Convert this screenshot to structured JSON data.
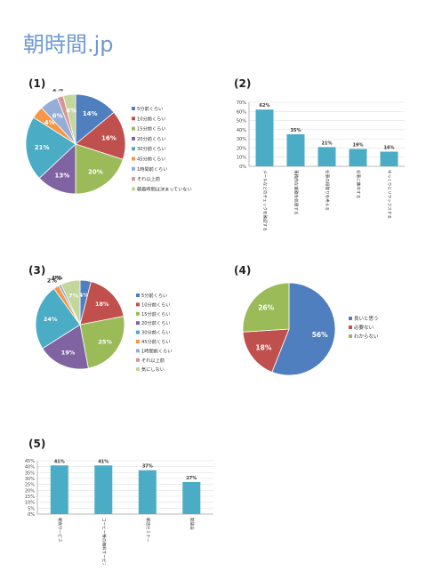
{
  "header": {
    "logo": "朝時間.jp"
  },
  "panels": [
    "(1)",
    "(2)",
    "(3)",
    "(4)",
    "(5)"
  ],
  "chart_data": [
    {
      "type": "pie",
      "labels": [
        "5分前くらい",
        "10分前くらい",
        "15分前くらい",
        "20分前くらい",
        "30分前くらい",
        "45分前くらい",
        "1時間前くらい",
        "それ以上前",
        "朝着時間は決まっていない"
      ],
      "values": [
        14,
        16,
        20,
        13,
        21,
        4,
        6,
        2,
        4
      ],
      "value_labels": [
        "14%",
        "16%",
        "20%",
        "13%",
        "21%",
        "4%",
        "6%",
        "2%",
        "4%"
      ],
      "colors": [
        "#4f7fbe",
        "#c0504d",
        "#9bbb59",
        "#8064a2",
        "#4bacc6",
        "#f79646",
        "#94aed8",
        "#d99694",
        "#c3d69b"
      ],
      "legend": "right"
    },
    {
      "type": "bar",
      "categories": [
        "メールなどのチェックを確認する",
        "事務的な業務を処理する",
        "仕事の段取りを考える",
        "仕事に集中する",
        "ゆっくりとリラックスする"
      ],
      "values": [
        62,
        35,
        21,
        19,
        16
      ],
      "value_labels": [
        "62%",
        "35%",
        "21%",
        "19%",
        "16%"
      ],
      "yticks": [
        "0%",
        "10%",
        "20%",
        "30%",
        "40%",
        "50%",
        "60%",
        "70%"
      ],
      "ylim": [
        0,
        70
      ],
      "color": "#4bacc6",
      "grid": true
    },
    {
      "type": "pie",
      "labels": [
        "5分前くらい",
        "10分前くらい",
        "15分前くらい",
        "20分前くらい",
        "30分前くらい",
        "45分前くらい",
        "1時間前くらい",
        "それ以上前",
        "気にしない"
      ],
      "values": [
        4,
        18,
        25,
        19,
        24,
        2,
        1,
        0,
        7
      ],
      "value_labels": [
        "4%",
        "18%",
        "25%",
        "19%",
        "24%",
        "2%",
        "1%",
        "0%",
        "7%"
      ],
      "colors": [
        "#4f7fbe",
        "#c0504d",
        "#9bbb59",
        "#8064a2",
        "#4bacc6",
        "#f79646",
        "#94aed8",
        "#d99694",
        "#c3d69b"
      ],
      "legend": "right"
    },
    {
      "type": "pie",
      "labels": [
        "良いと思う",
        "必要ない",
        "わからない"
      ],
      "values": [
        56,
        18,
        26
      ],
      "value_labels": [
        "56%",
        "18%",
        "26%"
      ],
      "colors": [
        "#4f7fbe",
        "#c0504d",
        "#9bbb59"
      ],
      "legend": "right"
    },
    {
      "type": "bar",
      "categories": [
        "朝食サービス",
        "コーヒー等の無料サービス",
        "朝活セミナー",
        "勉強会"
      ],
      "values": [
        41,
        41,
        37,
        27
      ],
      "value_labels": [
        "41%",
        "41%",
        "37%",
        "27%"
      ],
      "yticks": [
        "0%",
        "5%",
        "10%",
        "15%",
        "20%",
        "25%",
        "30%",
        "35%",
        "40%",
        "45%"
      ],
      "ylim": [
        0,
        45
      ],
      "color": "#4bacc6",
      "grid": true
    }
  ]
}
